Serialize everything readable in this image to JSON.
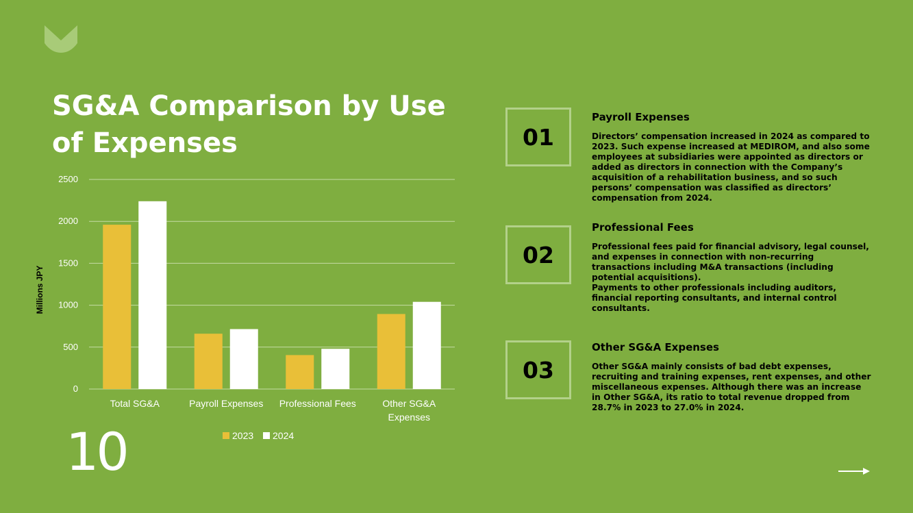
{
  "title": "SG&A Comparison by Use of Expenses",
  "page_number": "10",
  "colors": {
    "background": "#7fae40",
    "bar_2023": "#e9bf38",
    "bar_2024": "#ffffff",
    "box_border": "#b3d18a"
  },
  "icons": {
    "logo": "leaf-crown-logo",
    "next": "arrow-right-icon"
  },
  "items": [
    {
      "number": "01",
      "heading": "Payroll Expenses",
      "body": "Directors’ compensation increased in 2024 as compared to 2023. Such expense increased at MEDIROM, and also some employees at subsidiaries were appointed as directors or added as directors in connection with the Company’s acquisition of a rehabilitation business, and so such persons’ compensation was classified as directors’ compensation from 2024."
    },
    {
      "number": "02",
      "heading": "Professional Fees",
      "body": "Professional fees paid for financial advisory, legal counsel, and expenses in connection with non-recurring transactions including M&A transactions (including potential acquisitions).\nPayments to other professionals including auditors, financial reporting consultants, and internal control consultants."
    },
    {
      "number": "03",
      "heading": "Other SG&A Expenses",
      "body": "Other SG&A mainly consists of bad debt expenses, recruiting and training expenses, rent expenses, and other miscellaneous expenses. Although there was an increase in Other SG&A, its ratio to total revenue dropped from 28.7% in 2023 to 27.0% in 2024."
    }
  ],
  "chart_data": {
    "type": "bar",
    "categories": [
      "Total SG&A",
      "Payroll Expenses",
      "Professional Fees",
      "Other SG&A Expenses"
    ],
    "series": [
      {
        "name": "2023",
        "values": [
          1960,
          660,
          405,
          895
        ]
      },
      {
        "name": "2024",
        "values": [
          2240,
          715,
          480,
          1040
        ]
      }
    ],
    "ylabel": "Millions JPY",
    "xlabel": "",
    "ylim": [
      0,
      2500
    ],
    "yticks": [
      0,
      500,
      1000,
      1500,
      2000,
      2500
    ],
    "grid": true,
    "legend": "bottom"
  }
}
